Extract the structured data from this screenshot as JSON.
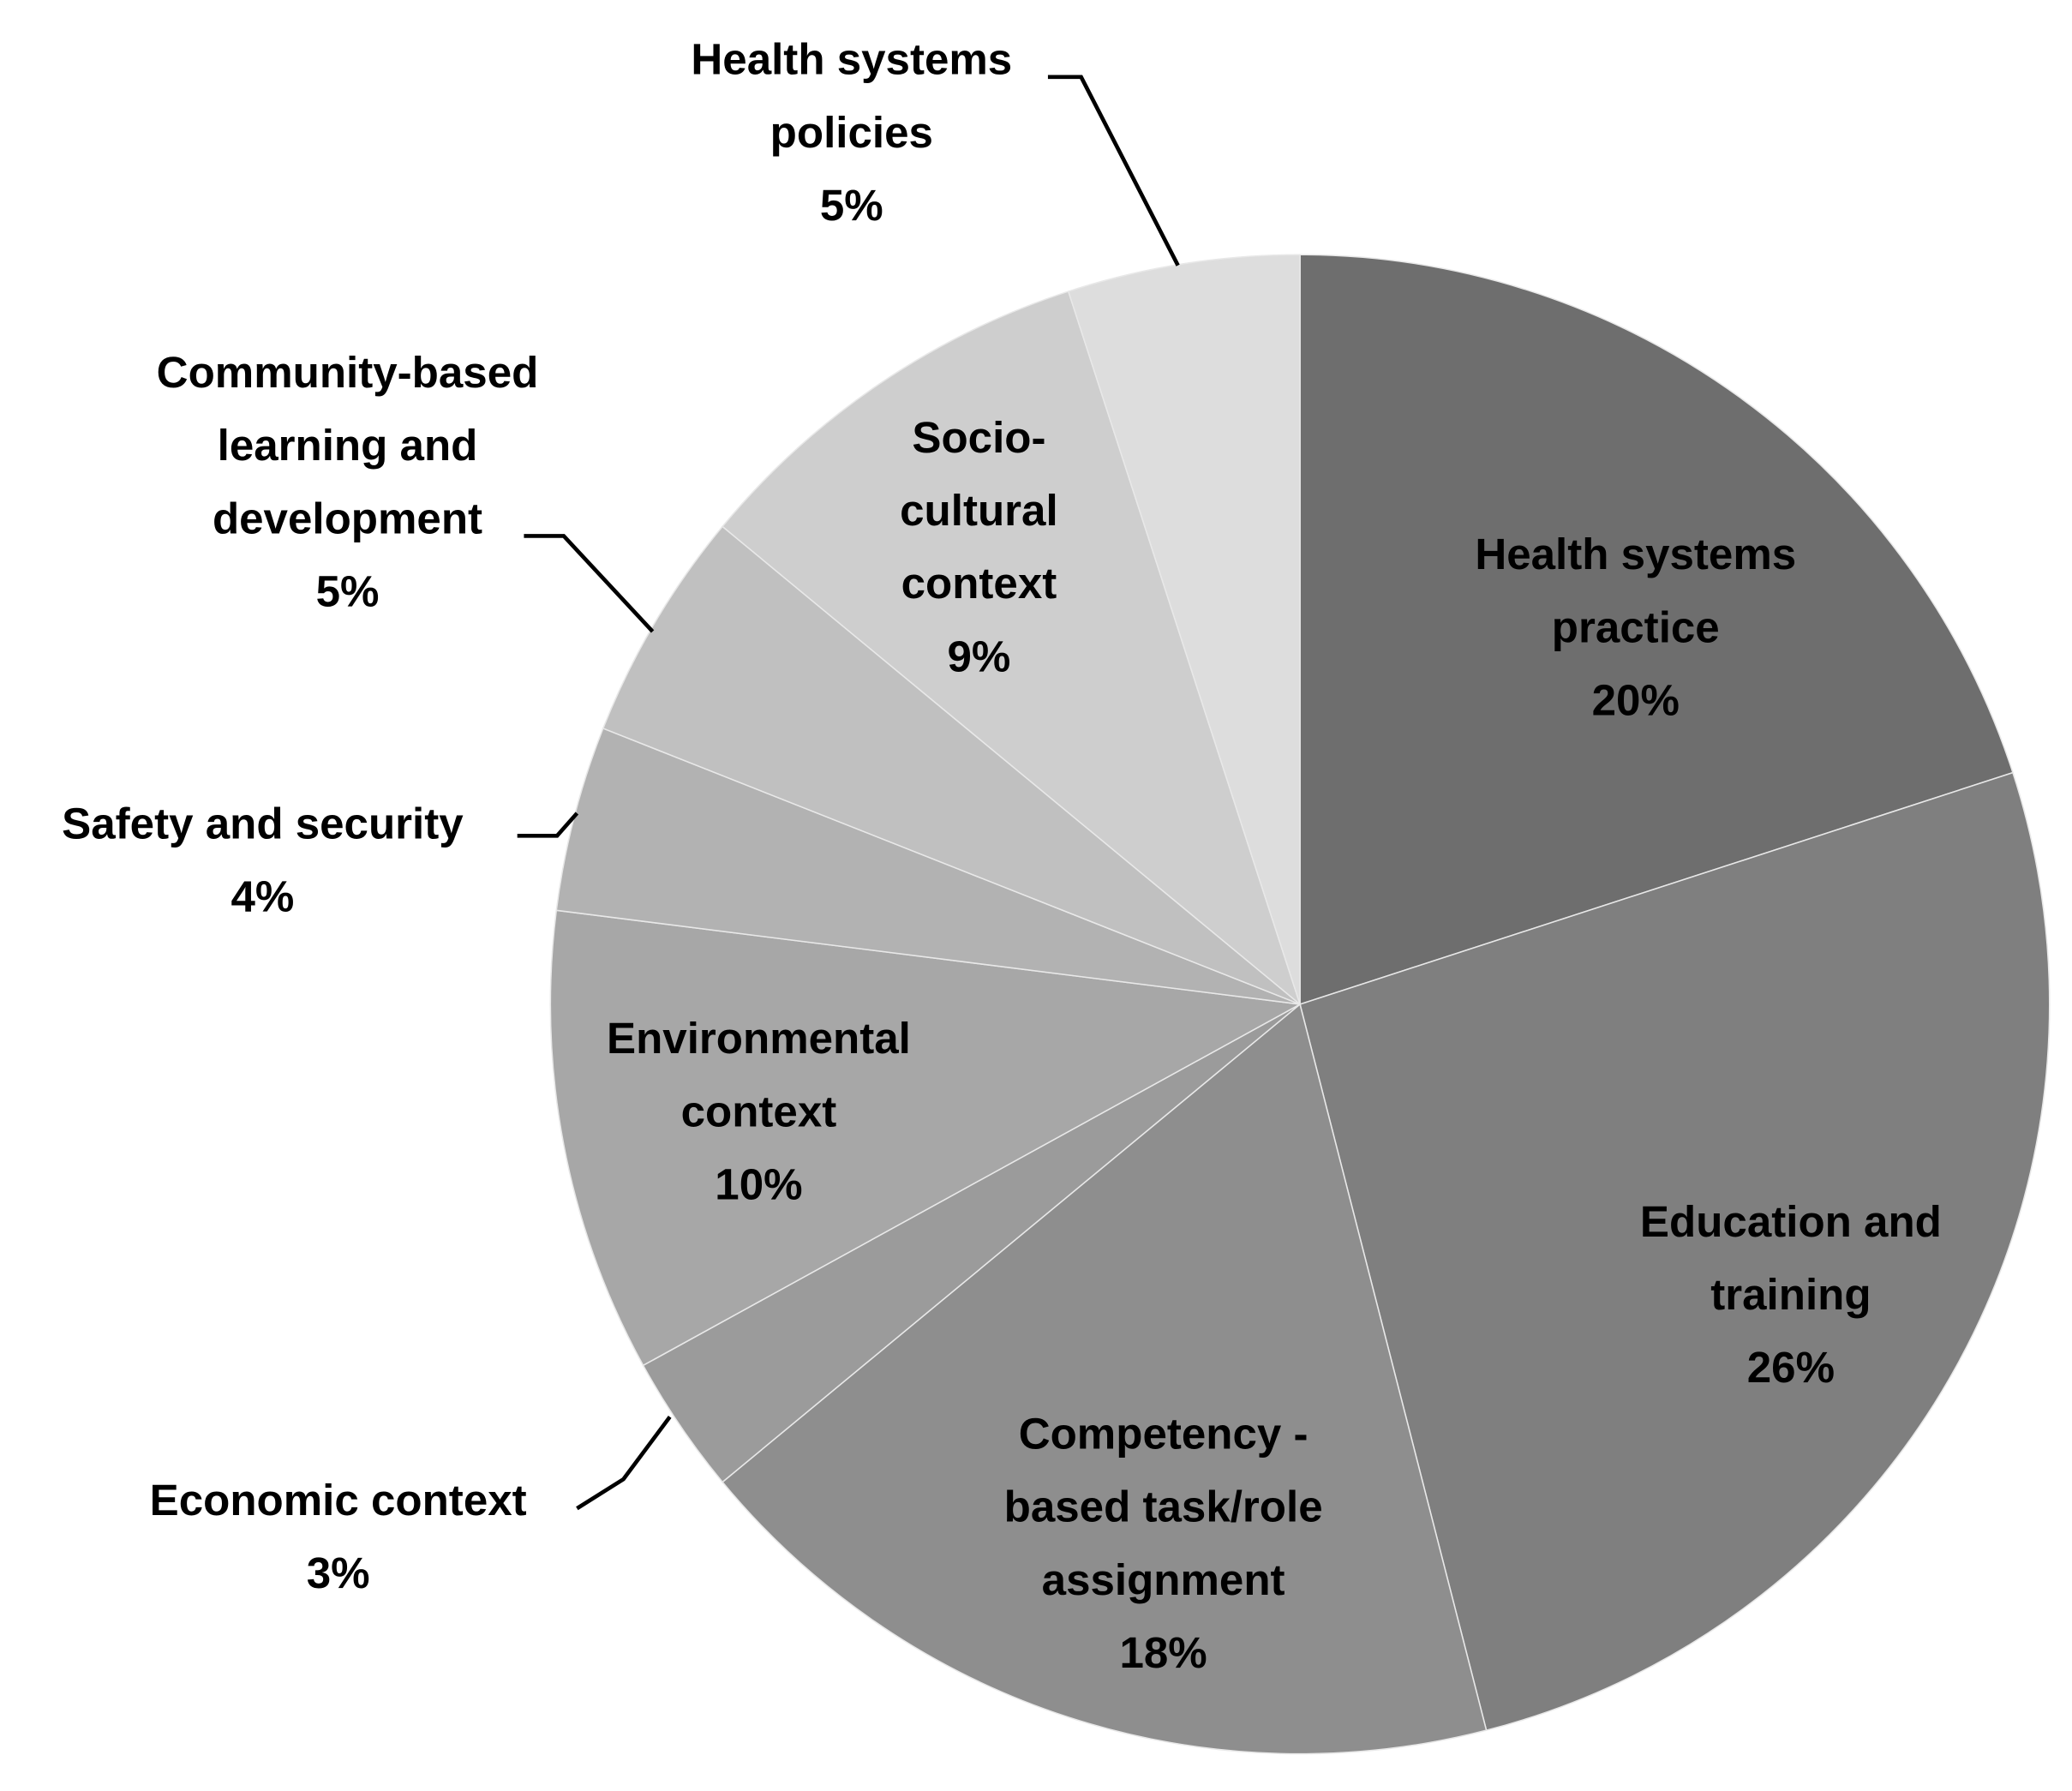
{
  "chart_data": {
    "type": "pie",
    "categories": [
      "Health systems practice",
      "Education and training",
      "Competency - based task/role assignment",
      "Economic context",
      "Environmental context",
      "Safety and security",
      "Community-based learning and development",
      "Socio-cultural context",
      "Health systems policies"
    ],
    "values": [
      20,
      26,
      18,
      3,
      10,
      4,
      5,
      9,
      5
    ],
    "value_labels": [
      "20%",
      "26%",
      "18%",
      "3%",
      "10%",
      "4%",
      "5%",
      "9%",
      "5%"
    ],
    "colors": [
      "#6e6e6e",
      "#7f7f7f",
      "#8e8e8e",
      "#9b9b9b",
      "#a7a7a7",
      "#b2b2b2",
      "#c0c0c0",
      "#cecece",
      "#dddddd"
    ]
  }
}
